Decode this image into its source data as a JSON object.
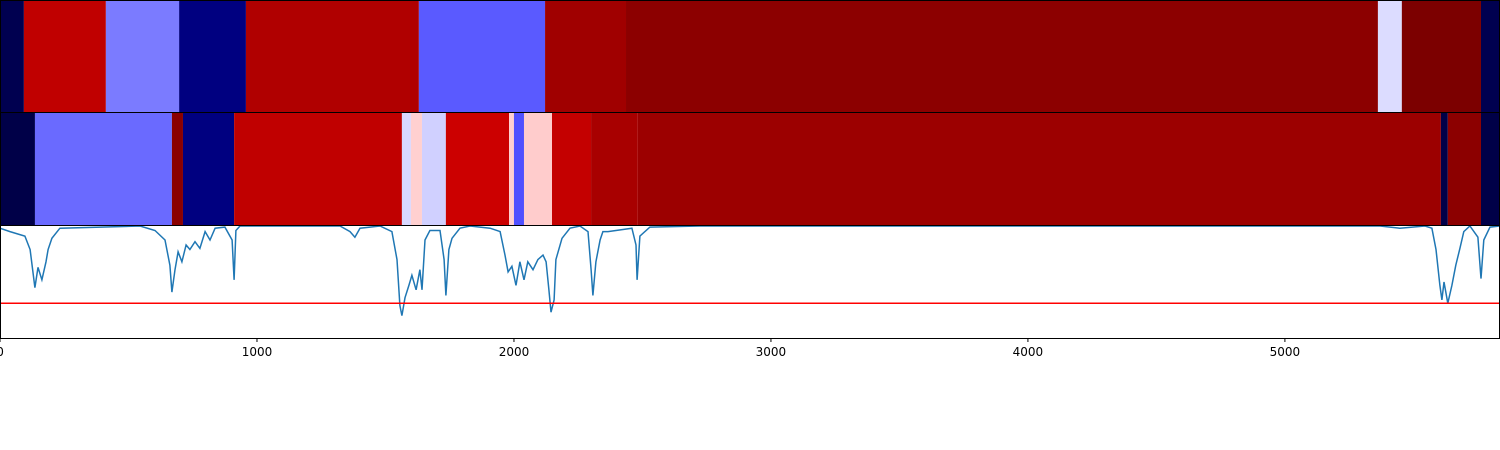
{
  "chart_data": [
    {
      "type": "segments",
      "xlim": [
        0,
        5837
      ],
      "segments": [
        {
          "start": 0,
          "end": 93,
          "color": "#000050"
        },
        {
          "start": 93,
          "end": 412,
          "color": "#c00000"
        },
        {
          "start": 412,
          "end": 697,
          "color": "#7b7bff"
        },
        {
          "start": 697,
          "end": 957,
          "color": "#000080"
        },
        {
          "start": 957,
          "end": 1630,
          "color": "#b00000"
        },
        {
          "start": 1630,
          "end": 2121,
          "color": "#5a5aff"
        },
        {
          "start": 2121,
          "end": 2436,
          "color": "#a00000"
        },
        {
          "start": 2436,
          "end": 5362,
          "color": "#8c0000"
        },
        {
          "start": 5362,
          "end": 5455,
          "color": "#dcdcff"
        },
        {
          "start": 5455,
          "end": 5763,
          "color": "#7c0000"
        },
        {
          "start": 5763,
          "end": 5837,
          "color": "#000050"
        }
      ]
    },
    {
      "type": "segments",
      "xlim": [
        0,
        5837
      ],
      "segments": [
        {
          "start": 0,
          "end": 136,
          "color": "#000048"
        },
        {
          "start": 136,
          "end": 669,
          "color": "#6a6aff"
        },
        {
          "start": 669,
          "end": 712,
          "color": "#8a0000"
        },
        {
          "start": 712,
          "end": 911,
          "color": "#000080"
        },
        {
          "start": 911,
          "end": 1564,
          "color": "#c00000"
        },
        {
          "start": 1564,
          "end": 1599,
          "color": "#d8d8ff"
        },
        {
          "start": 1599,
          "end": 1642,
          "color": "#ffd0d0"
        },
        {
          "start": 1642,
          "end": 1735,
          "color": "#d0d0ff"
        },
        {
          "start": 1735,
          "end": 1981,
          "color": "#cc0000"
        },
        {
          "start": 1981,
          "end": 2000,
          "color": "#ffd0d0"
        },
        {
          "start": 2000,
          "end": 2039,
          "color": "#5050ff"
        },
        {
          "start": 2039,
          "end": 2148,
          "color": "#ffcccc"
        },
        {
          "start": 2148,
          "end": 2300,
          "color": "#c40000"
        },
        {
          "start": 2300,
          "end": 2482,
          "color": "#a80000"
        },
        {
          "start": 2482,
          "end": 5607,
          "color": "#9c0000"
        },
        {
          "start": 5607,
          "end": 5634,
          "color": "#000048"
        },
        {
          "start": 5634,
          "end": 5763,
          "color": "#8c0000"
        },
        {
          "start": 5763,
          "end": 5837,
          "color": "#000048"
        }
      ]
    },
    {
      "type": "line",
      "xlim": [
        0,
        5837
      ],
      "ylim": [
        0,
        1.0
      ],
      "xticks": [
        0,
        1000,
        2000,
        3000,
        4000,
        5000
      ],
      "color": "#1f77b4",
      "hline": {
        "value": 0.31,
        "color": "#ff0000"
      },
      "x": [
        0,
        39,
        97,
        117,
        136,
        148,
        163,
        179,
        187,
        202,
        233,
        545,
        603,
        642,
        661,
        669,
        681,
        693,
        708,
        724,
        739,
        759,
        778,
        798,
        817,
        837,
        875,
        903,
        911,
        918,
        934,
        1323,
        1362,
        1381,
        1401,
        1479,
        1525,
        1545,
        1556,
        1564,
        1576,
        1591,
        1603,
        1619,
        1634,
        1642,
        1654,
        1673,
        1712,
        1728,
        1735,
        1747,
        1759,
        1790,
        1829,
        1907,
        1946,
        1965,
        1977,
        1992,
        2008,
        2023,
        2039,
        2054,
        2074,
        2093,
        2113,
        2125,
        2136,
        2144,
        2156,
        2163,
        2187,
        2218,
        2257,
        2288,
        2300,
        2307,
        2319,
        2335,
        2346,
        2366,
        2459,
        2475,
        2479,
        2490,
        2529,
        2724,
        5370,
        5447,
        5545,
        5572,
        5588,
        5603,
        5611,
        5619,
        5634,
        5650,
        5665,
        5681,
        5696,
        5720,
        5751,
        5763,
        5774,
        5798,
        5837
      ],
      "values": [
        0.98,
        0.95,
        0.91,
        0.79,
        0.45,
        0.63,
        0.52,
        0.68,
        0.79,
        0.89,
        0.98,
        1.0,
        0.96,
        0.875,
        0.65,
        0.41,
        0.61,
        0.77,
        0.68,
        0.83,
        0.79,
        0.86,
        0.8,
        0.95,
        0.875,
        0.98,
        0.99,
        0.875,
        0.52,
        0.96,
        1.0,
        1.0,
        0.95,
        0.9,
        0.98,
        1.0,
        0.95,
        0.7,
        0.29,
        0.2,
        0.36,
        0.47,
        0.56,
        0.43,
        0.61,
        0.43,
        0.875,
        0.96,
        0.96,
        0.7,
        0.38,
        0.79,
        0.89,
        0.98,
        1.0,
        0.98,
        0.95,
        0.74,
        0.59,
        0.64,
        0.47,
        0.68,
        0.52,
        0.68,
        0.61,
        0.7,
        0.74,
        0.68,
        0.43,
        0.23,
        0.34,
        0.7,
        0.89,
        0.98,
        1.0,
        0.95,
        0.61,
        0.38,
        0.68,
        0.875,
        0.95,
        0.95,
        0.98,
        0.83,
        0.52,
        0.91,
        0.99,
        1.0,
        1.0,
        0.98,
        1.0,
        0.98,
        0.79,
        0.47,
        0.34,
        0.5,
        0.31,
        0.47,
        0.65,
        0.8,
        0.95,
        1.0,
        0.9,
        0.53,
        0.875,
        0.99,
        1.0
      ]
    }
  ]
}
